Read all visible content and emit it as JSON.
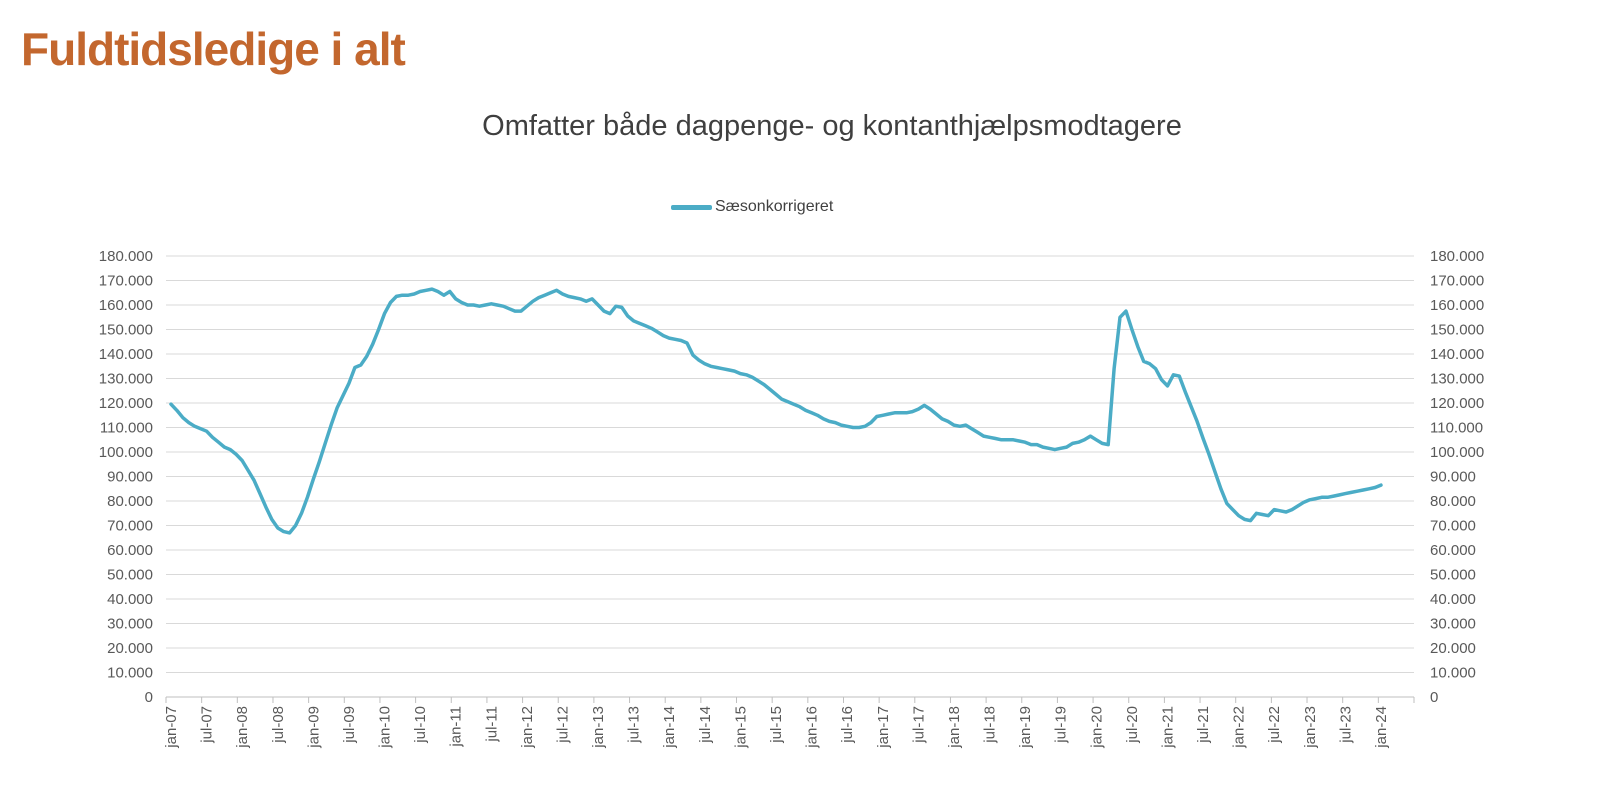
{
  "header": {
    "title": "Fuldtidsledige i alt",
    "title_color": "#C3672E"
  },
  "chart_data": {
    "type": "line",
    "title": "Omfatter både dagpenge- og kontanthjælpsmodtagere",
    "legend_position": "top-center",
    "grid": true,
    "frequency": "monthly",
    "x_start": "jan-07",
    "x_end": "jan-24",
    "xlabel": "",
    "ylabel": "",
    "ylim": [
      0,
      180000
    ],
    "y_tick_step": 10000,
    "x_tick_labels": [
      "jan-07",
      "jul-07",
      "jan-08",
      "jul-08",
      "jan-09",
      "jul-09",
      "jan-10",
      "jul-10",
      "jan-11",
      "jul-11",
      "jan-12",
      "jul-12",
      "jan-13",
      "jul-13",
      "jan-14",
      "jul-14",
      "jan-15",
      "jul-15",
      "jan-16",
      "jul-16",
      "jan-17",
      "jul-17",
      "jan-18",
      "jul-18",
      "jan-19",
      "jul-19",
      "jan-20",
      "jul-20",
      "jan-21",
      "jul-21",
      "jan-22",
      "jul-22",
      "jan-23",
      "jul-23",
      "jan-24"
    ],
    "y_tick_labels": [
      "0",
      "10.000",
      "20.000",
      "30.000",
      "40.000",
      "50.000",
      "60.000",
      "70.000",
      "80.000",
      "90.000",
      "100.000",
      "110.000",
      "120.000",
      "130.000",
      "140.000",
      "150.000",
      "160.000",
      "170.000",
      "180.000"
    ],
    "colors": {
      "series_line": "#4BACC6",
      "chart_title": "#3F3F3F",
      "legend_text": "#404040",
      "axis_text": "#595959",
      "gridline": "#D9D9D9",
      "axis_line": "#BFBFBF"
    },
    "series": [
      {
        "name": "Sæsonkorrigeret",
        "values": [
          119500,
          117000,
          114000,
          112000,
          110500,
          109500,
          108500,
          106000,
          104000,
          102000,
          101000,
          99000,
          96500,
          92500,
          88500,
          83000,
          77500,
          72500,
          69000,
          67500,
          67000,
          70000,
          75000,
          81500,
          89000,
          96000,
          103500,
          111000,
          118000,
          123000,
          128000,
          134500,
          135500,
          139000,
          144000,
          150000,
          156500,
          161000,
          163500,
          164000,
          164000,
          164500,
          165500,
          166000,
          166500,
          165500,
          164000,
          165500,
          162500,
          161000,
          160000,
          160000,
          159500,
          160000,
          160500,
          160000,
          159500,
          158500,
          157500,
          157500,
          159500,
          161500,
          163000,
          164000,
          165000,
          166000,
          164500,
          163500,
          163000,
          162500,
          161500,
          162500,
          160000,
          157500,
          156500,
          159500,
          159000,
          155500,
          153500,
          152500,
          151500,
          150500,
          149000,
          147500,
          146500,
          146000,
          145500,
          144500,
          139500,
          137500,
          136000,
          135000,
          134500,
          134000,
          133500,
          133000,
          132000,
          131500,
          130500,
          129000,
          127500,
          125500,
          123500,
          121500,
          120500,
          119500,
          118500,
          117000,
          116000,
          115000,
          113500,
          112500,
          112000,
          111000,
          110500,
          110000,
          110000,
          110500,
          112000,
          114500,
          115000,
          115500,
          116000,
          116000,
          116000,
          116500,
          117500,
          119000,
          117500,
          115500,
          113500,
          112500,
          111000,
          110500,
          111000,
          109500,
          108000,
          106500,
          106000,
          105500,
          105000,
          105000,
          105000,
          104500,
          104000,
          103000,
          103000,
          102000,
          101500,
          101000,
          101500,
          102000,
          103500,
          104000,
          105000,
          106500,
          105000,
          103500,
          103000,
          134000,
          155000,
          157500,
          150000,
          143000,
          137000,
          136000,
          134000,
          129500,
          127000,
          131500,
          131000,
          124500,
          118500,
          112500,
          105500,
          99000,
          92000,
          85000,
          79000,
          76500,
          74000,
          72500,
          72000,
          75000,
          74500,
          74000,
          76500,
          76000,
          75500,
          76500,
          78000,
          79500,
          80500,
          81000,
          81500,
          81500,
          82000,
          82500,
          83000,
          83500,
          84000,
          84500,
          85000,
          85500,
          86500
        ]
      }
    ]
  }
}
